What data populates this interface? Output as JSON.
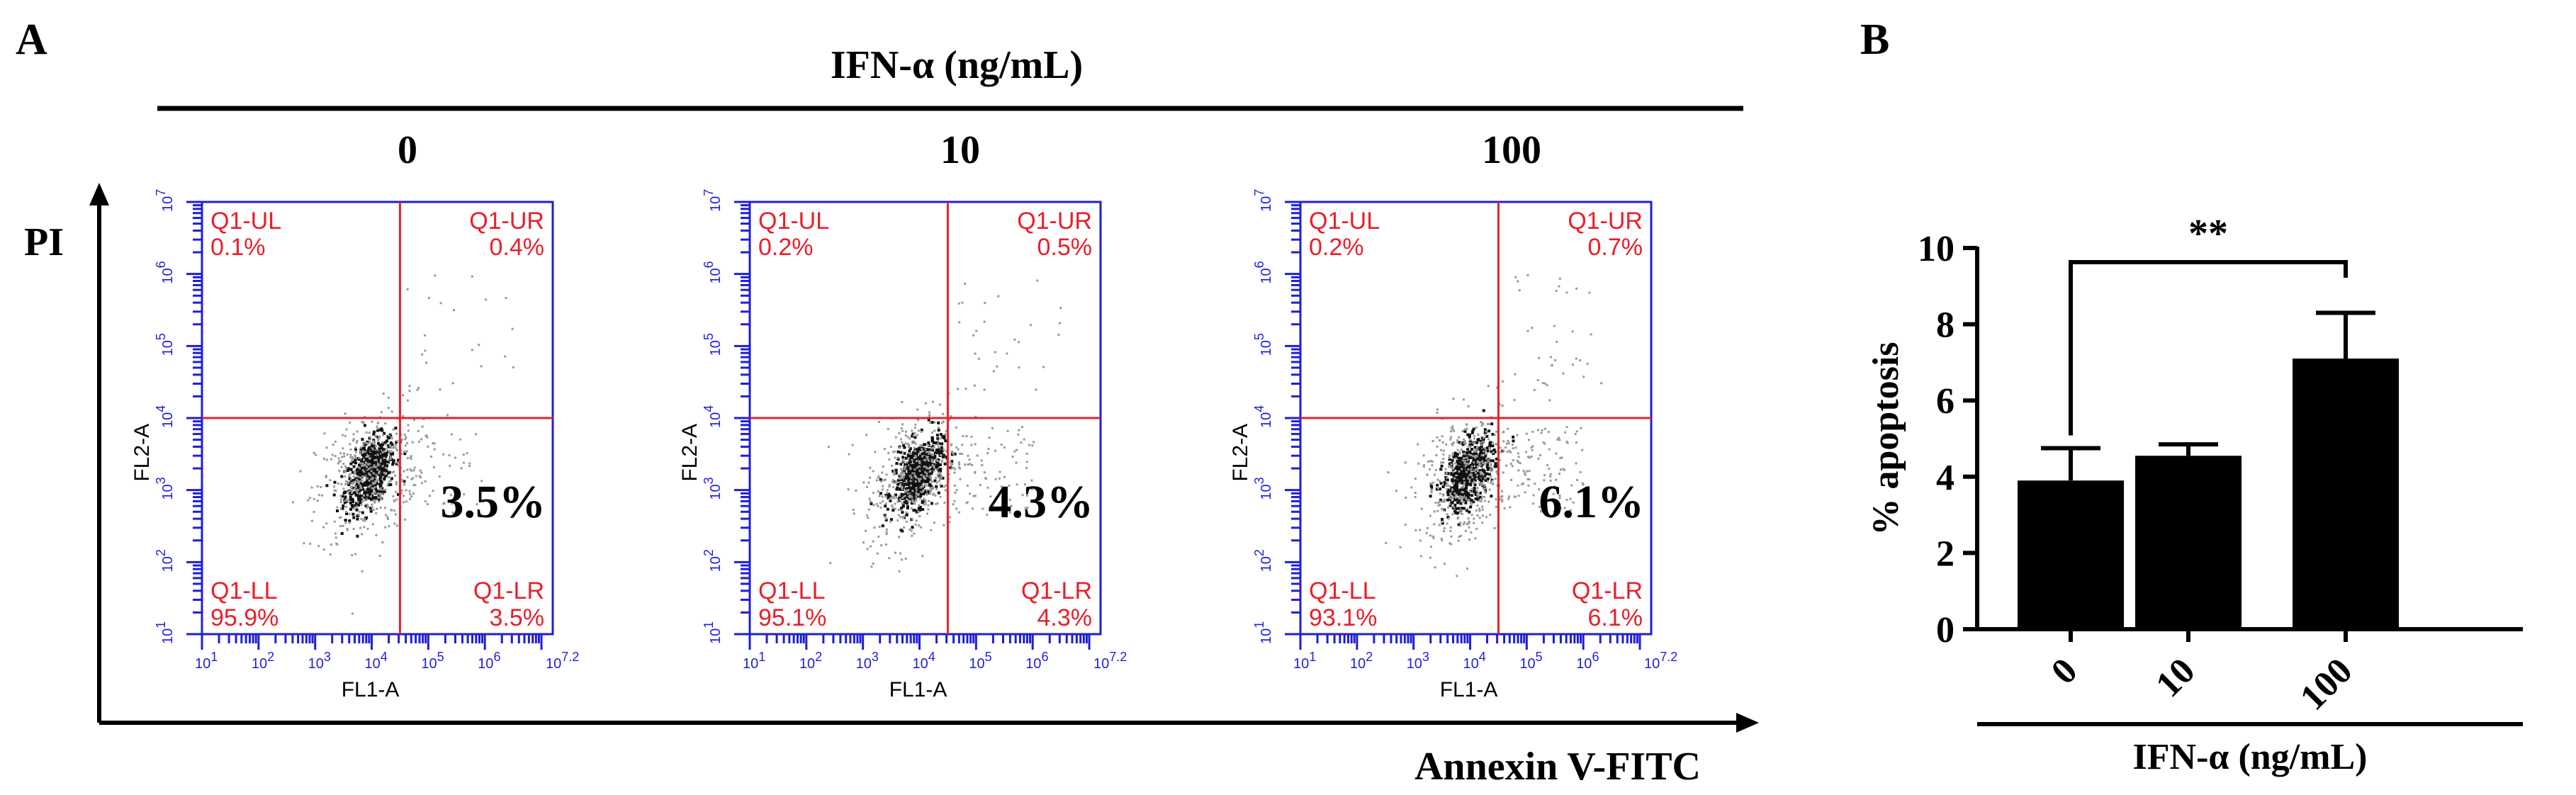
{
  "panel_a": {
    "letter": "A",
    "treatment_label": "IFN-α (ng/mL)",
    "y_axis_label": "PI",
    "x_axis_label": "Annexin V-FITC",
    "plot_x_label": "FL1-A",
    "plot_y_label": "FL2-A",
    "tick_base": "10",
    "x_tick_exponents": [
      "1",
      "2",
      "3",
      "4",
      "5",
      "6",
      "7.2"
    ],
    "y_tick_exponents": [
      "1",
      "2",
      "3",
      "4",
      "5",
      "6",
      "7"
    ],
    "plots": [
      {
        "dose": "0",
        "big_label": "3.5%",
        "quadrants": [
          {
            "name": "Q1-UL",
            "value": "0.1%"
          },
          {
            "name": "Q1-UR",
            "value": "0.4%"
          },
          {
            "name": "Q1-LL",
            "value": "95.9%"
          },
          {
            "name": "Q1-LR",
            "value": "3.5%"
          }
        ]
      },
      {
        "dose": "10",
        "big_label": "4.3%",
        "quadrants": [
          {
            "name": "Q1-UL",
            "value": "0.2%"
          },
          {
            "name": "Q1-UR",
            "value": "0.5%"
          },
          {
            "name": "Q1-LL",
            "value": "95.1%"
          },
          {
            "name": "Q1-LR",
            "value": "4.3%"
          }
        ]
      },
      {
        "dose": "100",
        "big_label": "6.1%",
        "quadrants": [
          {
            "name": "Q1-UL",
            "value": "0.2%"
          },
          {
            "name": "Q1-UR",
            "value": "0.7%"
          },
          {
            "name": "Q1-LL",
            "value": "93.1%"
          },
          {
            "name": "Q1-LR",
            "value": "6.1%"
          }
        ]
      }
    ]
  },
  "panel_b": {
    "letter": "B"
  },
  "colors": {
    "plot_frame": "#1f1fd6",
    "gate": "#e8202a",
    "quadrant_text": "#e8202a",
    "bar": "#000000",
    "event_core": "#111111",
    "event_halo": "#9a9a9a"
  },
  "chart_data": [
    {
      "type": "scatter",
      "title": "IFN-α (ng/mL)",
      "xlabel": "FL1-A",
      "ylabel": "FL2-A",
      "x_scale": "log10",
      "y_scale": "log10",
      "xlim": [
        10,
        15848932
      ],
      "ylim": [
        10,
        10000000
      ],
      "categories": [
        "0",
        "10",
        "100"
      ],
      "series": [
        {
          "name": "Q1-LR",
          "values": [
            3.5,
            4.3,
            6.1
          ]
        },
        {
          "name": "Q1-LL",
          "values": [
            95.9,
            95.1,
            93.1
          ]
        },
        {
          "name": "Q1-UL",
          "values": [
            0.1,
            0.2,
            0.2
          ]
        },
        {
          "name": "Q1-UR",
          "values": [
            0.4,
            0.5,
            0.7
          ]
        }
      ]
    },
    {
      "type": "bar",
      "title": "",
      "xlabel": "IFN-α (ng/mL)",
      "ylabel": "% apoptosis",
      "categories": [
        "0",
        "10",
        "100"
      ],
      "values": [
        3.9,
        4.55,
        7.1
      ],
      "errors": [
        0.85,
        0.3,
        1.2
      ],
      "ylim": [
        0,
        10
      ],
      "yticks": [
        0,
        2,
        4,
        6,
        8,
        10
      ],
      "significance": {
        "from": "0",
        "to": "100",
        "label": "**"
      }
    }
  ]
}
